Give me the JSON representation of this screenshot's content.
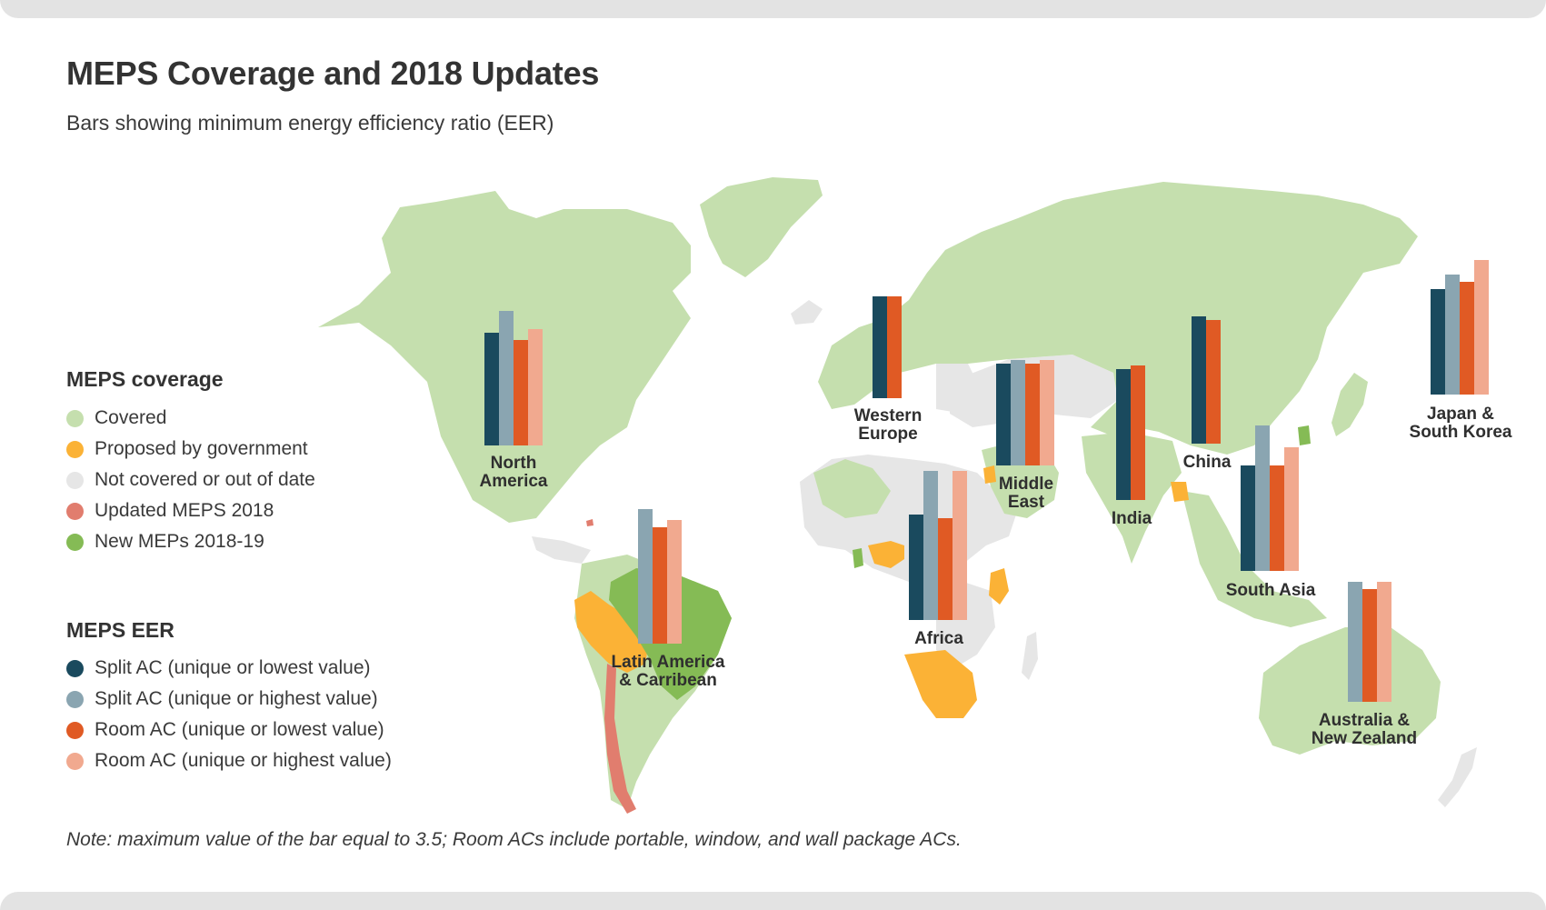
{
  "header": {
    "title": "MEPS Coverage and 2018 Updates",
    "subtitle": "Bars showing minimum energy efficiency ratio (EER)"
  },
  "legend_coverage": {
    "title": "MEPS coverage",
    "items": [
      {
        "label": "Covered",
        "color": "#c5dfae"
      },
      {
        "label": "Proposed by government",
        "color": "#fbb236"
      },
      {
        "label": "Not covered or out of date",
        "color": "#e6e6e6"
      },
      {
        "label": "Updated MEPS 2018",
        "color": "#e17d6e"
      },
      {
        "label": "New MEPs 2018-19",
        "color": "#85bb55"
      }
    ]
  },
  "legend_eer": {
    "title": "MEPS EER",
    "items": [
      {
        "label": "Split AC (unique or lowest value)",
        "color": "#1a4a5e"
      },
      {
        "label": "Split AC (unique or highest value)",
        "color": "#8aa5b1"
      },
      {
        "label": "Room AC (unique or lowest value)",
        "color": "#e05a24"
      },
      {
        "label": "Room AC (unique or highest value)",
        "color": "#f1a98f"
      }
    ]
  },
  "note": "Note: maximum value of the bar equal to 3.5; Room ACs include portable, window, and wall package ACs.",
  "chart_data": {
    "type": "bar",
    "max_value": 3.5,
    "series": [
      {
        "name": "Split AC (unique or lowest value)",
        "color": "#1a4a5e"
      },
      {
        "name": "Split AC (unique or highest value)",
        "color": "#8aa5b1"
      },
      {
        "name": "Room AC (unique or lowest value)",
        "color": "#e05a24"
      },
      {
        "name": "Room AC (unique or highest value)",
        "color": "#f1a98f"
      }
    ],
    "regions": [
      {
        "id": "north-america",
        "label_lines": [
          "North",
          "America"
        ],
        "values": [
          3.1,
          3.7,
          2.9,
          3.2
        ]
      },
      {
        "id": "latin-america",
        "label_lines": [
          "Latin America",
          "& Carribean"
        ],
        "values": [
          null,
          3.7,
          3.2,
          3.4
        ]
      },
      {
        "id": "western-europe",
        "label_lines": [
          "Western",
          "Europe"
        ],
        "values": [
          2.8,
          null,
          2.8,
          null
        ]
      },
      {
        "id": "middle-east",
        "label_lines": [
          "Middle",
          "East"
        ],
        "values": [
          2.8,
          2.9,
          2.8,
          2.9
        ]
      },
      {
        "id": "africa",
        "label_lines": [
          "Africa"
        ],
        "values": [
          2.9,
          4.1,
          2.8,
          4.1
        ]
      },
      {
        "id": "india",
        "label_lines": [
          "India"
        ],
        "values": [
          3.6,
          null,
          3.7,
          null
        ]
      },
      {
        "id": "china",
        "label_lines": [
          "China"
        ],
        "values": [
          3.5,
          null,
          3.4,
          null
        ]
      },
      {
        "id": "south-asia",
        "label_lines": [
          "South Asia"
        ],
        "values": [
          2.9,
          4.0,
          2.9,
          3.4
        ]
      },
      {
        "id": "japan-south-korea",
        "label_lines": [
          "Japan &",
          "South Korea"
        ],
        "values": [
          2.9,
          3.3,
          3.1,
          3.7
        ]
      },
      {
        "id": "australia-new-zealand",
        "label_lines": [
          "Australia &",
          "New Zealand"
        ],
        "values": [
          null,
          3.3,
          3.1,
          3.3
        ]
      }
    ]
  },
  "map_colors": {
    "covered": "#c5dfae",
    "proposed": "#fbb236",
    "not_covered": "#e6e6e6",
    "updated_2018": "#e17d6e",
    "new_2018_19": "#85bb55"
  }
}
